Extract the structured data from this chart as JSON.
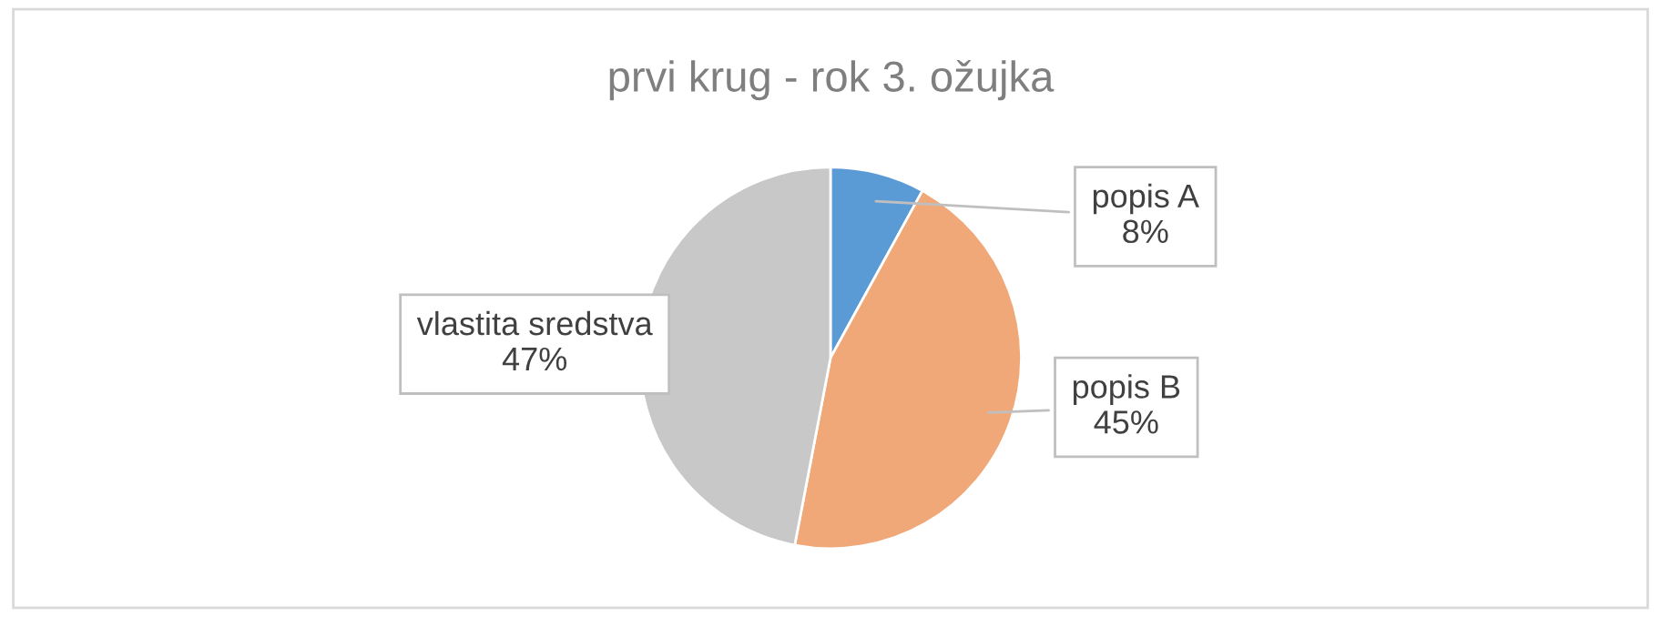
{
  "chart_data": {
    "type": "pie",
    "title": "prvi krug - rok 3. ožujka",
    "categories": [
      "popis A",
      "popis B",
      "vlastita sredstva"
    ],
    "values": [
      8,
      45,
      47
    ],
    "value_labels": [
      "8%",
      "45%",
      "47%"
    ],
    "colors": [
      "#5b9bd5",
      "#f0a878",
      "#c8c8c8"
    ]
  }
}
